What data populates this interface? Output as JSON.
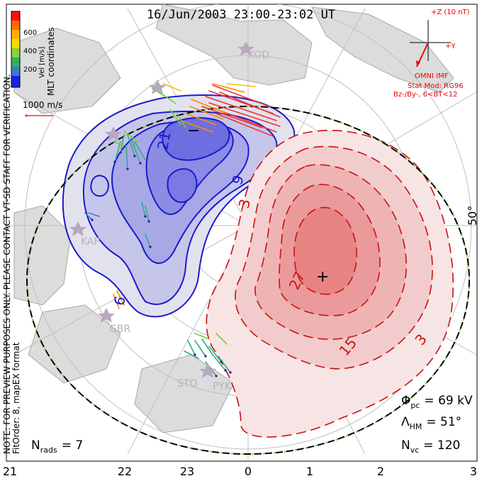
{
  "title": "16/Jun/2003 23:00-23:02 UT",
  "colorbar": {
    "label": "Vel [m/s]",
    "tick_labels": [
      "600",
      "400",
      "200"
    ],
    "colors": [
      "#ff1010",
      "#ff6a00",
      "#ffb000",
      "#e8e000",
      "#88d040",
      "#30b060",
      "#3a7cc8",
      "#2020e0"
    ]
  },
  "coords_label": "MLT coordinates",
  "velocity_scale_label": "1000 m/s",
  "imf": {
    "z_label": "+Z (10 nT)",
    "y_label": "+Y",
    "source_label": "OMNI IMF",
    "stat_model": "Stat Mod: RG96",
    "condition": "Bz-/By-, 6<BT<12"
  },
  "preview_note_1": "NOTE: FOR PREVIEW PURPOSES ONLY. PLEASE CONTACT VT-SD STAFF FOR VERIFICATION.",
  "preview_note_2": "FitOrder: 8, mapEX format",
  "stations": [
    "KOD",
    "KAP",
    "GBR",
    "STO",
    "PYK"
  ],
  "contour_labels": {
    "neg_a": "21",
    "neg_b": "9",
    "neg_c": "6",
    "pos_a": "3",
    "pos_b": "27",
    "pos_c": "15",
    "pos_d": "3"
  },
  "extrema": {
    "min_marker": "−",
    "max_marker": "+"
  },
  "latitude_label": "50°",
  "stats": {
    "phi_pc_symbol": "Φ",
    "phi_pc_sub": "pc",
    "phi_pc_value": "= 69 kV",
    "lambda_symbol": "Λ",
    "lambda_sub": "HM",
    "lambda_value": "= 51°",
    "nvc_symbol": "N",
    "nvc_sub": "vc",
    "nvc_value": "= 120",
    "nrads_symbol": "N",
    "nrads_sub": "rads",
    "nrads_value": "= 7"
  },
  "mlt_ticks": [
    "21",
    "22",
    "23",
    "0",
    "1",
    "2",
    "3"
  ],
  "chart_data": {
    "type": "map",
    "projection": "polar MLT",
    "cross_polar_cap_potential_kV": 69,
    "heppner_maynard_boundary_lat_deg": 51,
    "num_vectors": 120,
    "num_radars": 7,
    "velocity_range_m_s": [
      0,
      700
    ]
  }
}
